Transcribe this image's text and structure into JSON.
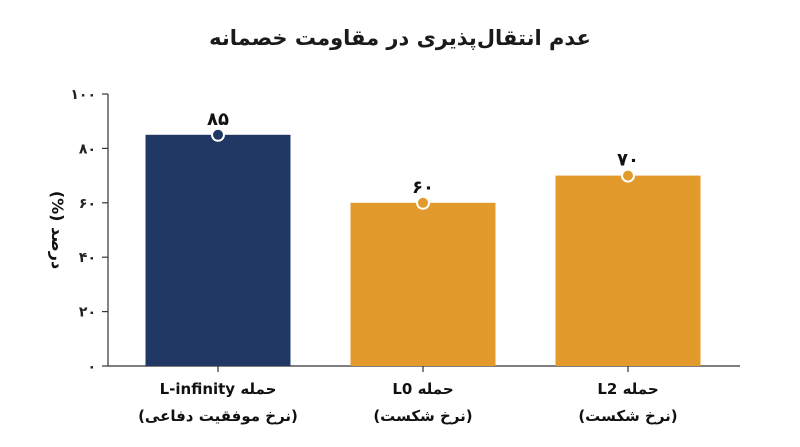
{
  "chart_data": {
    "type": "bar",
    "title": "عدم انتقال‌پذیری در مقاومت خصمانه",
    "ylabel": "درصد (%)",
    "xlabel": "",
    "ylim": [
      0,
      100
    ],
    "yticks": [
      "۰",
      "۲۰",
      "۴۰",
      "۶۰",
      "۸۰",
      "۱۰۰"
    ],
    "categories": [
      {
        "line1": "حمله L-infinity",
        "line2": "(نرخ موفقیت دفاعی)"
      },
      {
        "line1": "حمله L0",
        "line2": "(نرخ شکست)"
      },
      {
        "line1": "حمله L2",
        "line2": "(نرخ شکست)"
      }
    ],
    "values": [
      85,
      60,
      70
    ],
    "value_labels": [
      "۸۵",
      "۶۰",
      "۷۰"
    ],
    "colors": [
      "#213864",
      "#E39A2C",
      "#E39A2C"
    ],
    "grid": false,
    "legend": "none"
  }
}
